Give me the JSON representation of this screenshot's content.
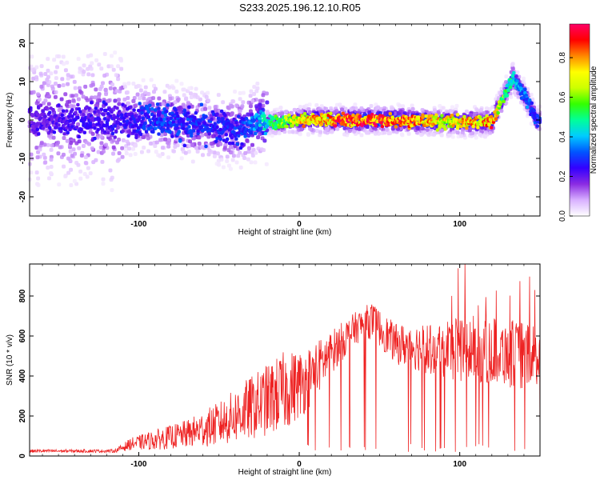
{
  "title": "S233.2025.196.12.10.R05",
  "colors": {
    "snr_line": "#ee2222",
    "frame": "#000000"
  },
  "chart_data": [
    {
      "type": "heatmap",
      "name": "spectrogram",
      "xlabel": "Height of straight line (km)",
      "ylabel": "Frequency (Hz)",
      "xlim": [
        -168,
        150
      ],
      "ylim": [
        -25,
        25
      ],
      "xticks": [
        -100,
        0,
        100
      ],
      "yticks": [
        -20,
        -10,
        0,
        10,
        20
      ],
      "colorbar": {
        "label": "Normalized spectral amplitude",
        "range": [
          0,
          0.97
        ],
        "ticks": [
          "0.0",
          "0.2",
          "0.4",
          "0.6",
          "0.8"
        ],
        "colormap": [
          "#ffffff",
          "#d8b0ff",
          "#8a2be2",
          "#3300ff",
          "#0055ff",
          "#00ccff",
          "#00ff99",
          "#33ff00",
          "#ccff00",
          "#ffff00",
          "#ff8800",
          "#ff0000",
          "#ff0066"
        ]
      },
      "ridge": [
        {
          "x": -165,
          "f": 0,
          "amp": 0.22
        },
        {
          "x": -140,
          "f": 0,
          "amp": 0.24
        },
        {
          "x": -110,
          "f": 0,
          "amp": 0.25
        },
        {
          "x": -90,
          "f": 0.5,
          "amp": 0.32
        },
        {
          "x": -70,
          "f": -1,
          "amp": 0.3
        },
        {
          "x": -50,
          "f": -2,
          "amp": 0.28
        },
        {
          "x": -35,
          "f": -3,
          "amp": 0.3
        },
        {
          "x": -25,
          "f": 0,
          "amp": 0.4
        },
        {
          "x": -15,
          "f": -0.5,
          "amp": 0.55
        },
        {
          "x": 0,
          "f": 0,
          "amp": 0.75
        },
        {
          "x": 30,
          "f": 0,
          "amp": 0.92
        },
        {
          "x": 60,
          "f": 0,
          "amp": 0.9
        },
        {
          "x": 90,
          "f": -0.5,
          "amp": 0.75
        },
        {
          "x": 120,
          "f": -0.5,
          "amp": 0.85
        },
        {
          "x": 133,
          "f": 11,
          "amp": 0.45
        },
        {
          "x": 141,
          "f": 6,
          "amp": 0.35
        },
        {
          "x": 148,
          "f": 0,
          "amp": 0.3
        }
      ]
    },
    {
      "type": "line",
      "name": "snr",
      "xlabel": "Height of straight line (km)",
      "ylabel": "SNR (10 * v/v)",
      "xlim": [
        -168,
        150
      ],
      "ylim": [
        0,
        960
      ],
      "xticks": [
        -100,
        0,
        100
      ],
      "yticks": [
        0,
        200,
        400,
        600,
        800
      ],
      "envelope": [
        {
          "x": -168,
          "mean": 25,
          "spread": 8
        },
        {
          "x": -115,
          "mean": 25,
          "spread": 8
        },
        {
          "x": -105,
          "mean": 60,
          "spread": 30
        },
        {
          "x": -90,
          "mean": 80,
          "spread": 50
        },
        {
          "x": -70,
          "mean": 110,
          "spread": 70
        },
        {
          "x": -50,
          "mean": 160,
          "spread": 110
        },
        {
          "x": -35,
          "mean": 220,
          "spread": 150
        },
        {
          "x": -20,
          "mean": 280,
          "spread": 180
        },
        {
          "x": -10,
          "mean": 320,
          "spread": 200
        },
        {
          "x": 5,
          "mean": 380,
          "spread": 160
        },
        {
          "x": 20,
          "mean": 520,
          "spread": 110
        },
        {
          "x": 35,
          "mean": 640,
          "spread": 80
        },
        {
          "x": 45,
          "mean": 680,
          "spread": 90
        },
        {
          "x": 60,
          "mean": 560,
          "spread": 100
        },
        {
          "x": 80,
          "mean": 540,
          "spread": 130
        },
        {
          "x": 100,
          "mean": 540,
          "spread": 170
        },
        {
          "x": 120,
          "mean": 530,
          "spread": 170
        },
        {
          "x": 140,
          "mean": 500,
          "spread": 170
        },
        {
          "x": 150,
          "mean": 480,
          "spread": 150
        }
      ]
    }
  ]
}
